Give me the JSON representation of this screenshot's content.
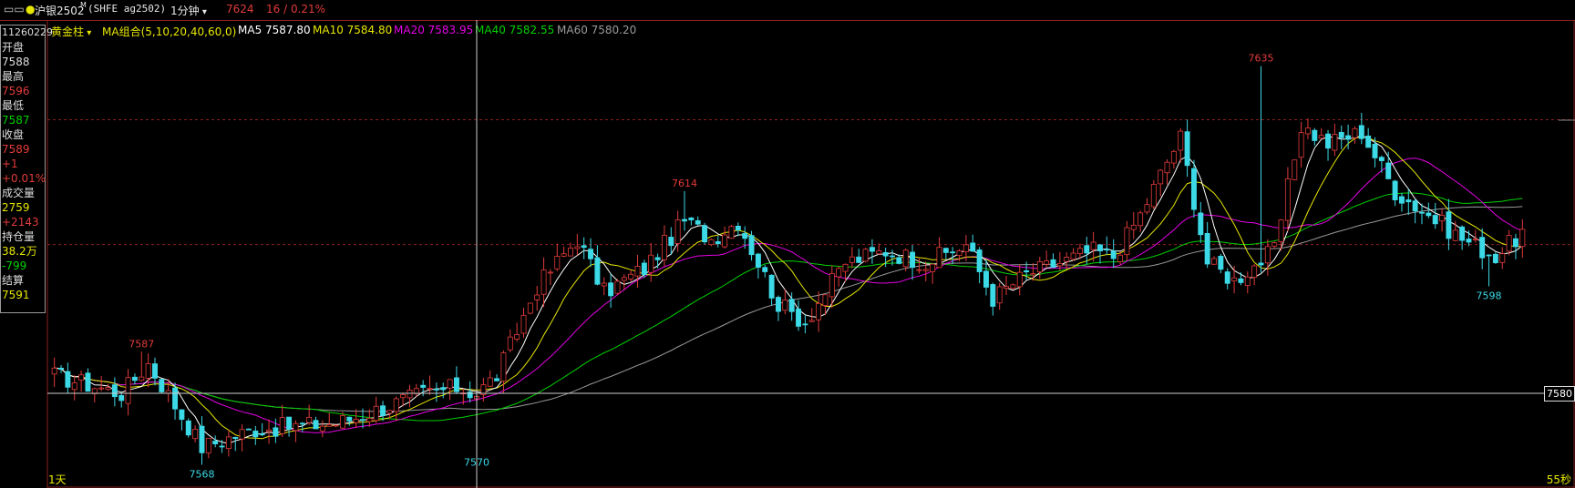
{
  "toolbar": {
    "window_icons": "▭▭",
    "symbol": "沪银2502",
    "superscript": "M",
    "code": "(SHFE ag2502)",
    "period": "1分钟",
    "last_price": "7624",
    "change": "16 / 0.21%"
  },
  "indicator_bar": {
    "style": "黄金柱",
    "ma_group": "MA组合(5,10,20,40,60,0)",
    "ma5": "MA5 7587.80",
    "ma10": "MA10 7584.80",
    "ma20": "MA20 7583.95",
    "ma40": "MA40 7582.55",
    "ma60": "MA60 7580.20"
  },
  "info_panel": {
    "time": "11260229",
    "open_label": "开盘",
    "open": "7588",
    "high_label": "最高",
    "high": "7596",
    "low_label": "最低",
    "low": "7587",
    "close_label": "收盘",
    "close": "7589",
    "chg": "+1",
    "chg_pct": "+0.01%",
    "vol_label": "成交量",
    "vol": "2759",
    "vol_chg": "+2143",
    "oi_label": "持仓量",
    "oi": "38.2万",
    "oi_chg": "-799",
    "settle_label": "结算",
    "settle": "7591"
  },
  "footer": {
    "left": "1天",
    "right": "55秒"
  },
  "crosshair_price": "7580",
  "colors": {
    "up": "#e23b3b",
    "down": "#3cd9e6",
    "ma5": "#ffffff",
    "ma10": "#e6e600",
    "ma20": "#e600e6",
    "ma40": "#00d000",
    "ma60": "#9a9a9a",
    "grid": "#8a1f1f"
  },
  "chart_data": {
    "type": "candlestick",
    "y_range": [
      7565,
      7640
    ],
    "bars": 220,
    "crosshair": {
      "bar_index": 63,
      "price": 7580
    },
    "reference_lines": [
      7626,
      7605
    ],
    "annotations": [
      {
        "label": "7587",
        "kind": "high",
        "bar": 13,
        "price": 7587
      },
      {
        "label": "7568",
        "kind": "low",
        "bar": 22,
        "price": 7568
      },
      {
        "label": "7570",
        "kind": "low",
        "bar": 63,
        "price": 7570
      },
      {
        "label": "7614",
        "kind": "high",
        "bar": 94,
        "price": 7614
      },
      {
        "label": "7635",
        "kind": "high",
        "bar": 180,
        "price": 7635
      },
      {
        "label": "7598",
        "kind": "low",
        "bar": 214,
        "price": 7598
      }
    ],
    "close_path": [
      [
        0,
        7583
      ],
      [
        10,
        7580
      ],
      [
        14,
        7585
      ],
      [
        22,
        7571
      ],
      [
        30,
        7574
      ],
      [
        42,
        7575
      ],
      [
        45,
        7576
      ],
      [
        55,
        7580
      ],
      [
        60,
        7581
      ],
      [
        63,
        7580
      ],
      [
        66,
        7583
      ],
      [
        72,
        7598
      ],
      [
        78,
        7606
      ],
      [
        82,
        7597
      ],
      [
        88,
        7601
      ],
      [
        94,
        7609
      ],
      [
        98,
        7606
      ],
      [
        102,
        7609
      ],
      [
        108,
        7595
      ],
      [
        112,
        7592
      ],
      [
        118,
        7602
      ],
      [
        124,
        7604
      ],
      [
        130,
        7602
      ],
      [
        136,
        7605
      ],
      [
        140,
        7596
      ],
      [
        145,
        7600
      ],
      [
        150,
        7602
      ],
      [
        155,
        7604
      ],
      [
        158,
        7603
      ],
      [
        162,
        7610
      ],
      [
        166,
        7619
      ],
      [
        168,
        7623
      ],
      [
        172,
        7602
      ],
      [
        176,
        7599
      ],
      [
        182,
        7604
      ],
      [
        186,
        7625
      ],
      [
        190,
        7622
      ],
      [
        195,
        7624
      ],
      [
        200,
        7614
      ],
      [
        205,
        7610
      ],
      [
        210,
        7606
      ],
      [
        215,
        7603
      ],
      [
        219,
        7607
      ]
    ]
  }
}
